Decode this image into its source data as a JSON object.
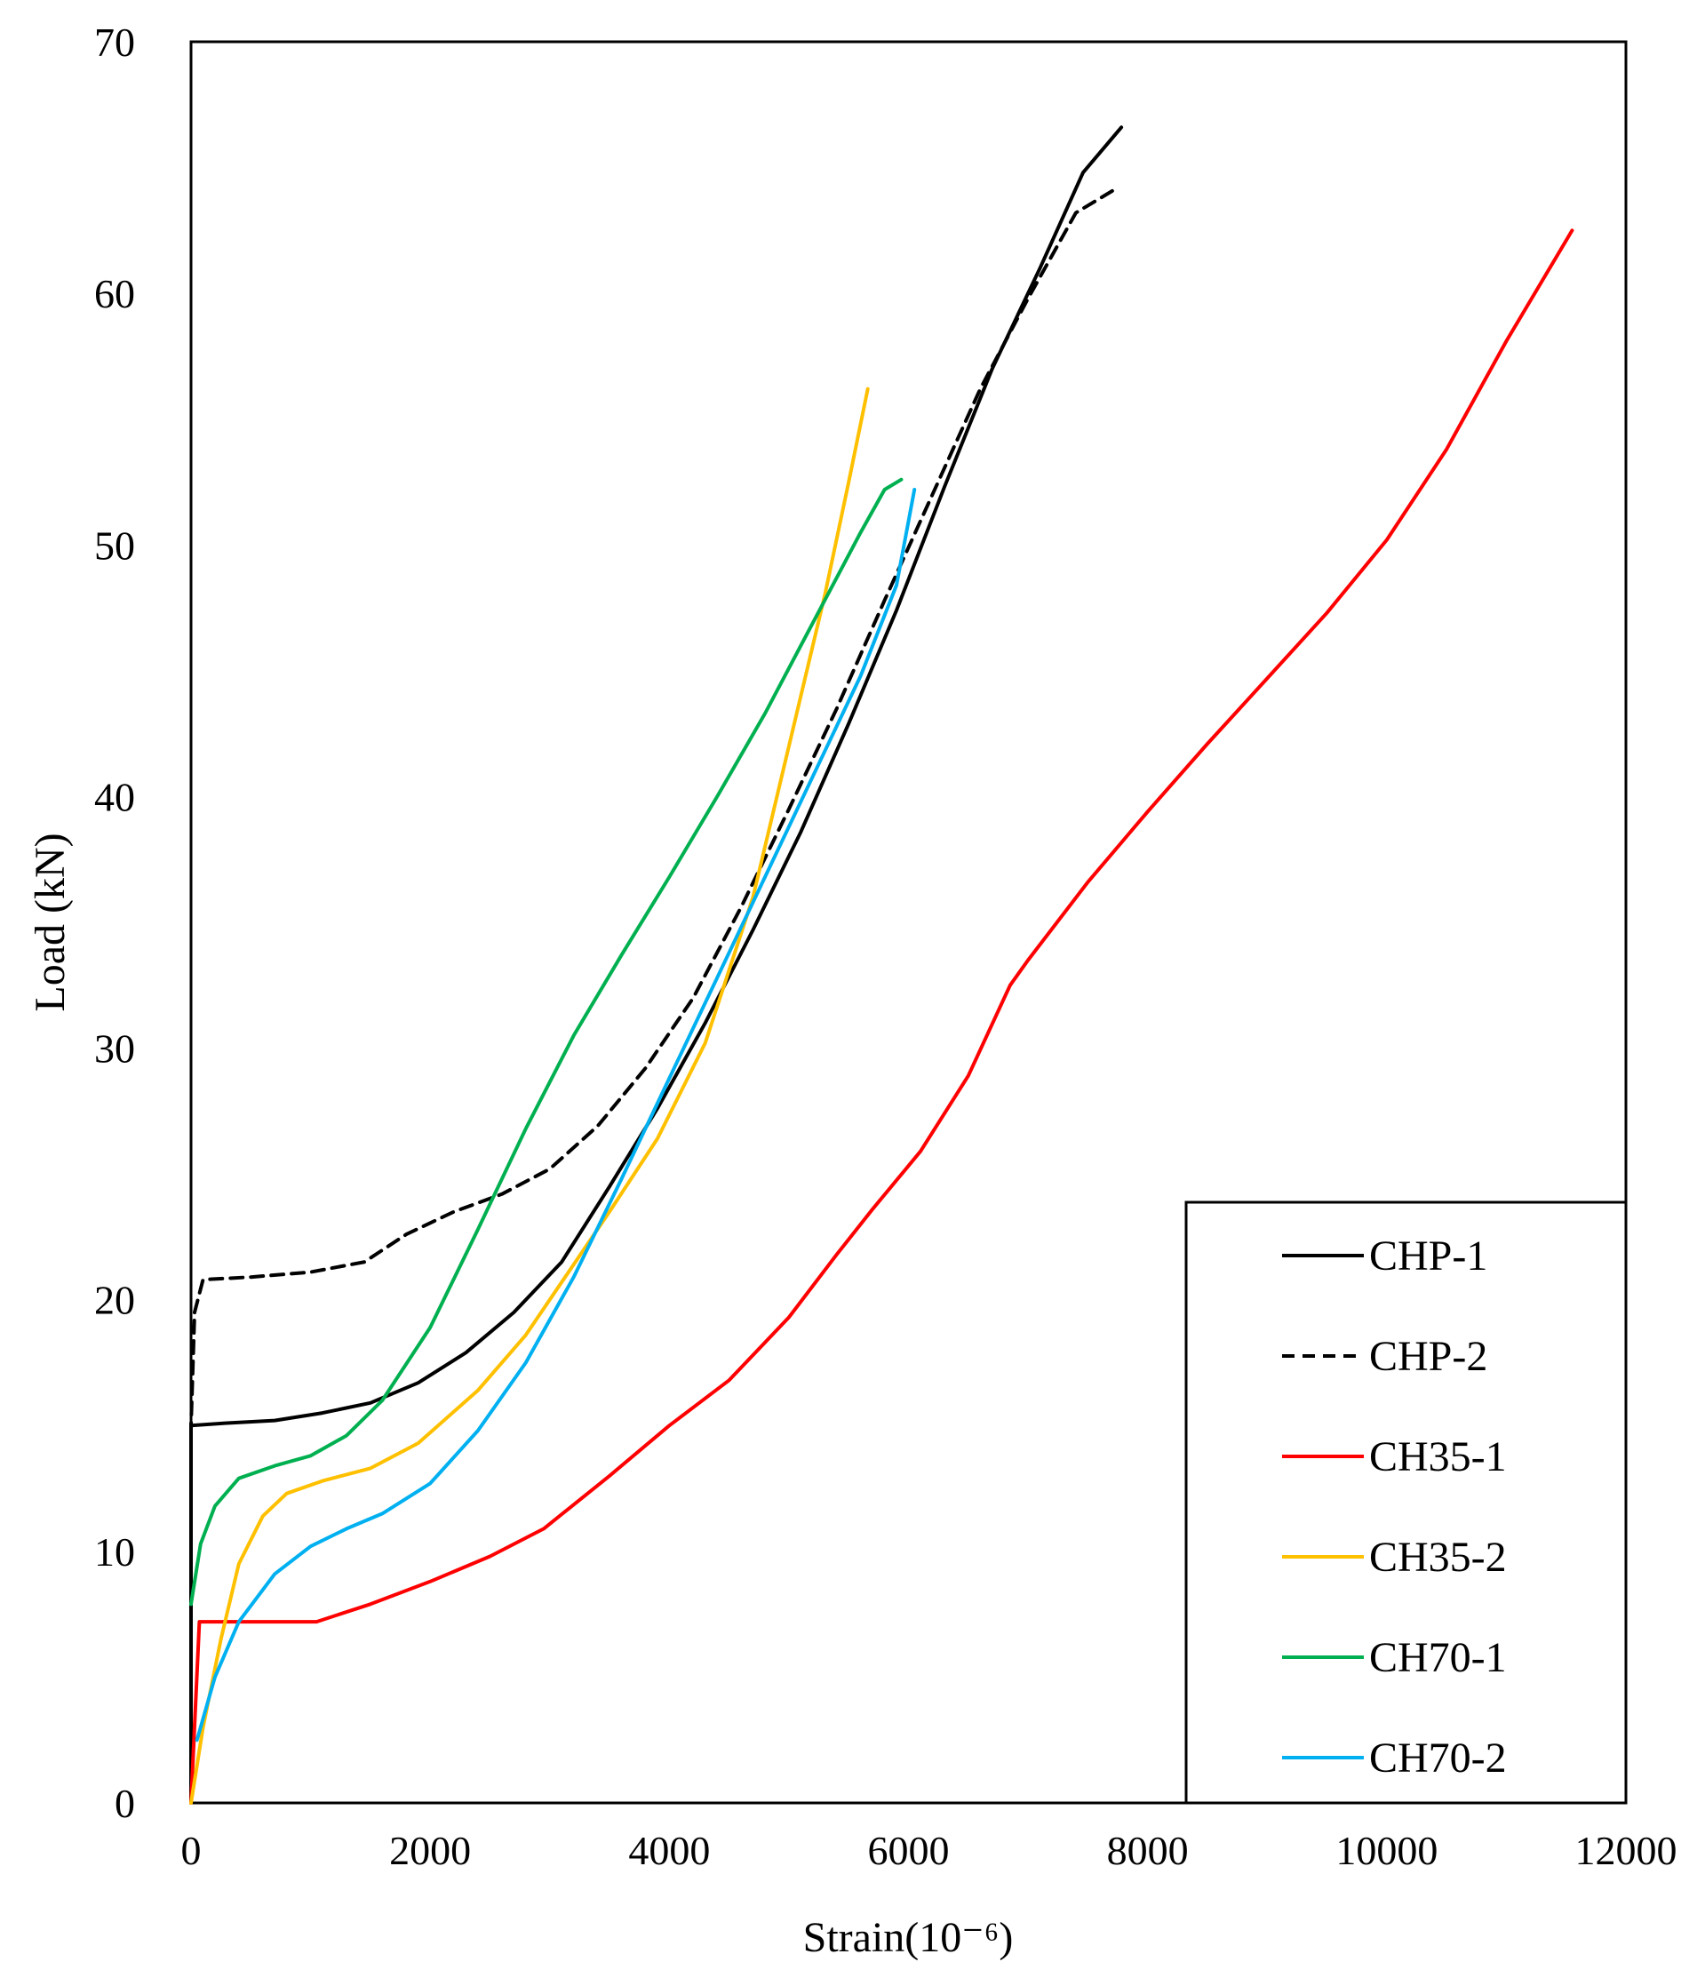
{
  "chart_data": {
    "type": "line",
    "title": "",
    "xlabel": "Strain(10⁻⁶)",
    "ylabel": "Load (kN)",
    "xlim": [
      0,
      12000
    ],
    "ylim": [
      0,
      70
    ],
    "xticks": [
      0,
      2000,
      4000,
      6000,
      8000,
      10000,
      12000
    ],
    "yticks": [
      0,
      10,
      20,
      30,
      40,
      50,
      60,
      70
    ],
    "xtick_labels": [
      "0",
      "2000",
      "4000",
      "6000",
      "8000",
      "10000",
      "12000"
    ],
    "ytick_labels": [
      "0",
      "10",
      "20",
      "30",
      "40",
      "50",
      "60",
      "70"
    ],
    "grid": false,
    "legend_position": "bottom-right",
    "series": [
      {
        "name": "CHP-1",
        "color": "#000000",
        "dash": "solid",
        "points": [
          [
            0,
            0
          ],
          [
            0,
            15
          ],
          [
            300,
            15.1
          ],
          [
            700,
            15.2
          ],
          [
            1100,
            15.5
          ],
          [
            1500,
            15.9
          ],
          [
            1900,
            16.7
          ],
          [
            2300,
            17.9
          ],
          [
            2700,
            19.5
          ],
          [
            3100,
            21.5
          ],
          [
            3500,
            24.5
          ],
          [
            3900,
            27.6
          ],
          [
            4300,
            31.0
          ],
          [
            4700,
            34.7
          ],
          [
            5100,
            38.6
          ],
          [
            5500,
            42.9
          ],
          [
            5900,
            47.4
          ],
          [
            6300,
            52.3
          ],
          [
            6700,
            57.0
          ],
          [
            7100,
            61.0
          ],
          [
            7460,
            64.8
          ],
          [
            7780,
            66.6
          ]
        ]
      },
      {
        "name": "CHP-2",
        "color": "#000000",
        "dash": "dashed",
        "points": [
          [
            0,
            0
          ],
          [
            0,
            15
          ],
          [
            30,
            19.5
          ],
          [
            100,
            20.8
          ],
          [
            500,
            20.9
          ],
          [
            1000,
            21.1
          ],
          [
            1450,
            21.5
          ],
          [
            1800,
            22.6
          ],
          [
            2200,
            23.5
          ],
          [
            2600,
            24.2
          ],
          [
            3000,
            25.2
          ],
          [
            3400,
            26.9
          ],
          [
            3800,
            29.2
          ],
          [
            4200,
            32.0
          ],
          [
            4600,
            35.6
          ],
          [
            5000,
            39.5
          ],
          [
            5400,
            43.5
          ],
          [
            5800,
            47.8
          ],
          [
            6200,
            52.0
          ],
          [
            6600,
            56.2
          ],
          [
            7000,
            59.8
          ],
          [
            7400,
            63.2
          ],
          [
            7750,
            64.2
          ]
        ]
      },
      {
        "name": "CH35-1",
        "color": "#ff0000",
        "dash": "solid",
        "points": [
          [
            0,
            0
          ],
          [
            70,
            7.2
          ],
          [
            500,
            7.2
          ],
          [
            1050,
            7.2
          ],
          [
            1500,
            7.9
          ],
          [
            2000,
            8.8
          ],
          [
            2500,
            9.8
          ],
          [
            2950,
            10.9
          ],
          [
            3500,
            13.0
          ],
          [
            4000,
            15.0
          ],
          [
            4500,
            16.8
          ],
          [
            5000,
            19.3
          ],
          [
            5400,
            21.8
          ],
          [
            5700,
            23.6
          ],
          [
            6100,
            25.9
          ],
          [
            6500,
            28.9
          ],
          [
            6850,
            32.5
          ],
          [
            7000,
            33.5
          ],
          [
            7500,
            36.6
          ],
          [
            8000,
            39.4
          ],
          [
            8500,
            42.1
          ],
          [
            9000,
            44.7
          ],
          [
            9500,
            47.3
          ],
          [
            10000,
            50.2
          ],
          [
            10500,
            53.8
          ],
          [
            11000,
            58.1
          ],
          [
            11550,
            62.5
          ]
        ]
      },
      {
        "name": "CH35-2",
        "color": "#ffc000",
        "dash": "solid",
        "points": [
          [
            0,
            0
          ],
          [
            100,
            3.0
          ],
          [
            250,
            6.5
          ],
          [
            400,
            9.5
          ],
          [
            600,
            11.4
          ],
          [
            800,
            12.3
          ],
          [
            1100,
            12.8
          ],
          [
            1500,
            13.3
          ],
          [
            1900,
            14.3
          ],
          [
            2400,
            16.4
          ],
          [
            2800,
            18.6
          ],
          [
            3100,
            20.7
          ],
          [
            3500,
            23.5
          ],
          [
            3900,
            26.4
          ],
          [
            4300,
            30.2
          ],
          [
            4700,
            36.0
          ],
          [
            5000,
            42.0
          ],
          [
            5300,
            48.0
          ],
          [
            5500,
            52.5
          ],
          [
            5660,
            56.2
          ]
        ]
      },
      {
        "name": "CH70-1",
        "color": "#00b050",
        "dash": "solid",
        "points": [
          [
            0,
            7.9
          ],
          [
            80,
            10.3
          ],
          [
            200,
            11.8
          ],
          [
            400,
            12.9
          ],
          [
            700,
            13.4
          ],
          [
            1000,
            13.8
          ],
          [
            1300,
            14.6
          ],
          [
            1600,
            16.0
          ],
          [
            2000,
            18.9
          ],
          [
            2400,
            22.8
          ],
          [
            2800,
            26.8
          ],
          [
            3200,
            30.5
          ],
          [
            3600,
            33.7
          ],
          [
            4000,
            36.8
          ],
          [
            4400,
            40.0
          ],
          [
            4800,
            43.3
          ],
          [
            5200,
            46.9
          ],
          [
            5600,
            50.5
          ],
          [
            5800,
            52.2
          ],
          [
            5940,
            52.6
          ]
        ]
      },
      {
        "name": "CH70-2",
        "color": "#00b0f0",
        "dash": "solid",
        "points": [
          [
            50,
            2.5
          ],
          [
            200,
            5.0
          ],
          [
            400,
            7.2
          ],
          [
            700,
            9.1
          ],
          [
            1000,
            10.2
          ],
          [
            1300,
            10.9
          ],
          [
            1600,
            11.5
          ],
          [
            2000,
            12.7
          ],
          [
            2400,
            14.8
          ],
          [
            2800,
            17.5
          ],
          [
            3200,
            20.9
          ],
          [
            3600,
            24.8
          ],
          [
            4000,
            28.8
          ],
          [
            4400,
            32.8
          ],
          [
            4800,
            36.8
          ],
          [
            5200,
            40.8
          ],
          [
            5600,
            44.8
          ],
          [
            5900,
            48.4
          ],
          [
            6050,
            52.2
          ]
        ]
      }
    ]
  }
}
